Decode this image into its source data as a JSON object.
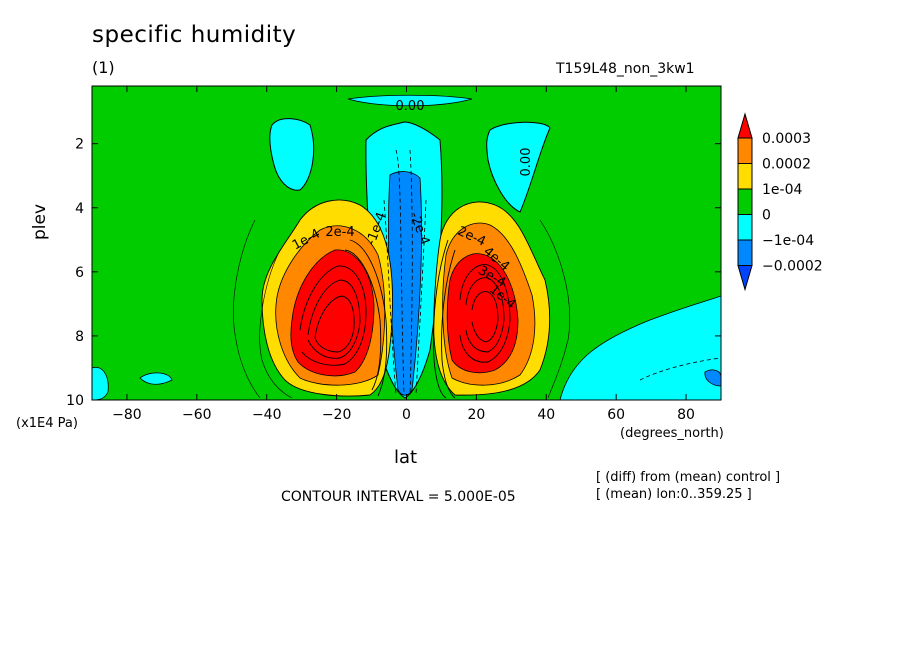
{
  "figure": {
    "title": "specific humidity",
    "subtitle": "(1)",
    "run_id": "T159L48_non_3kw1",
    "contour_interval": "CONTOUR INTERVAL = 5.000E-05",
    "notes": [
      "[ (diff) from (mean) control ]",
      "[ (mean) lon:0..359.25 ]"
    ]
  },
  "chart_data": {
    "type": "heatmap",
    "title": "specific humidity",
    "xlabel": "lat",
    "x_unit": "(degrees_north)",
    "ylabel": "plev",
    "y_unit": "(x1E4 Pa)",
    "xlim": [
      -90,
      90
    ],
    "ylim": [
      10,
      0.2
    ],
    "x_ticks": [
      -80,
      -60,
      -40,
      -20,
      0,
      20,
      40,
      60,
      80
    ],
    "y_ticks": [
      2,
      4,
      6,
      8,
      10
    ],
    "colorbar": {
      "levels": [
        "0.0003",
        "0.0002",
        "1e-04",
        "0",
        "−1e-04",
        "−0.0002"
      ],
      "colors": [
        "#ff0000",
        "#ff8800",
        "#ffdd00",
        "#00cc00",
        "#00ffff",
        "#0088ff",
        "#0044ff"
      ]
    },
    "contour_labels": [
      "0.00",
      "0.00",
      "1e-4",
      "2e-4",
      "2e-4",
      "3e-4",
      "1e-4",
      "4e-4",
      "-1e-4",
      "-2e-4"
    ],
    "features": [
      {
        "name": "moistening_south",
        "lat": -17,
        "plev": 8.4,
        "value": 0.0003
      },
      {
        "name": "moistening_north",
        "lat": 17,
        "plev": 8.4,
        "value": 0.0003
      },
      {
        "name": "drying_equator",
        "lat": 0,
        "plev": 6.0,
        "value": -0.0002
      }
    ]
  }
}
